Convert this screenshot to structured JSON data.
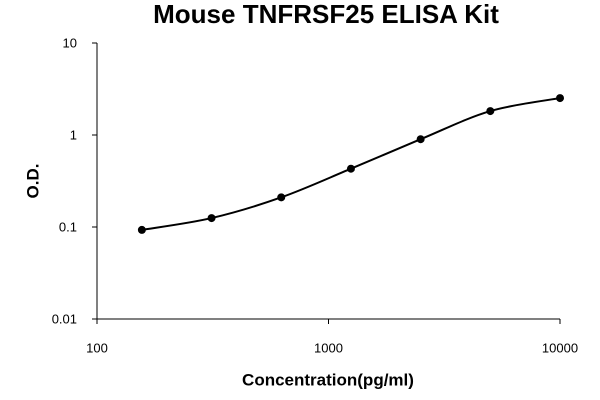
{
  "chart_data": {
    "type": "line",
    "title": "Mouse TNFRSF25 ELISA Kit",
    "x_label": "Concentration(pg/ml)",
    "y_label": "O.D.",
    "x": [
      156.25,
      312.5,
      625,
      1250,
      2500,
      5000,
      10000
    ],
    "series": [
      {
        "color": "#000000",
        "values": [
          0.093,
          0.125,
          0.21,
          0.43,
          0.9,
          1.82,
          2.52
        ]
      }
    ],
    "xscale": "log",
    "yscale": "log",
    "xlim": [
      100,
      10000
    ],
    "xticks": [
      100,
      1000,
      10000
    ],
    "ylim": [
      0.01,
      10
    ],
    "yticks": [
      0.01,
      0.1,
      1,
      10
    ],
    "grid": false,
    "markers": true,
    "smooth": true
  }
}
